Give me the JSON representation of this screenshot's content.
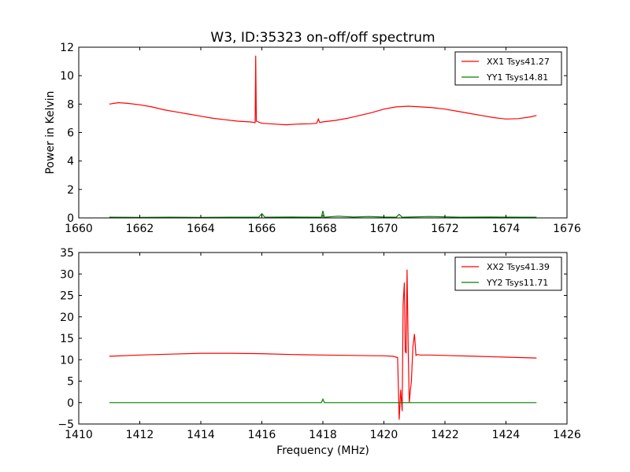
{
  "figure": {
    "title": "W3, ID:35323 on-off/off spectrum"
  },
  "chart_data": [
    {
      "type": "line",
      "title": "W3, ID:35323 on-off/off spectrum",
      "xlabel": "",
      "ylabel": "Power in Kelvin",
      "xlim": [
        1660,
        1676
      ],
      "ylim": [
        0,
        12
      ],
      "xticks": [
        1660,
        1662,
        1664,
        1666,
        1668,
        1670,
        1672,
        1674,
        1676
      ],
      "yticks": [
        0,
        2,
        4,
        6,
        8,
        10,
        12
      ],
      "grid": false,
      "legend": "top-right",
      "series": [
        {
          "name": "XX1 Tsys41.27",
          "color": "#ff0000",
          "x": [
            1661.0,
            1661.3,
            1661.6,
            1662.0,
            1662.4,
            1662.8,
            1663.2,
            1663.6,
            1664.0,
            1664.4,
            1664.8,
            1665.2,
            1665.6,
            1665.78,
            1665.8,
            1665.82,
            1666.0,
            1666.4,
            1666.8,
            1667.2,
            1667.6,
            1667.8,
            1667.85,
            1667.9,
            1668.0,
            1668.4,
            1668.8,
            1669.2,
            1669.6,
            1670.0,
            1670.4,
            1670.8,
            1671.2,
            1671.6,
            1672.0,
            1672.4,
            1672.8,
            1673.2,
            1673.6,
            1674.0,
            1674.4,
            1674.8,
            1675.0
          ],
          "y": [
            8.0,
            8.1,
            8.05,
            7.95,
            7.8,
            7.6,
            7.45,
            7.3,
            7.15,
            7.0,
            6.9,
            6.8,
            6.75,
            6.7,
            11.4,
            6.8,
            6.65,
            6.6,
            6.55,
            6.6,
            6.62,
            6.65,
            6.95,
            6.7,
            6.75,
            6.85,
            7.0,
            7.2,
            7.4,
            7.65,
            7.8,
            7.85,
            7.8,
            7.75,
            7.65,
            7.5,
            7.35,
            7.2,
            7.05,
            6.95,
            6.98,
            7.1,
            7.2
          ]
        },
        {
          "name": "YY1 Tsys14.81",
          "color": "#008000",
          "x": [
            1661.0,
            1662.0,
            1663.0,
            1664.0,
            1665.0,
            1665.9,
            1666.0,
            1666.1,
            1667.0,
            1667.95,
            1668.0,
            1668.05,
            1668.5,
            1669.0,
            1669.5,
            1670.0,
            1670.4,
            1670.5,
            1670.6,
            1671.5,
            1672.5,
            1673.5,
            1674.5,
            1675.0
          ],
          "y": [
            0.05,
            0.04,
            0.05,
            0.04,
            0.05,
            0.05,
            0.3,
            0.05,
            0.06,
            0.05,
            0.5,
            0.05,
            0.12,
            0.06,
            0.1,
            0.06,
            0.05,
            0.25,
            0.05,
            0.1,
            0.05,
            0.06,
            0.05,
            0.05
          ]
        }
      ]
    },
    {
      "type": "line",
      "title": "",
      "xlabel": "Frequency (MHz)",
      "ylabel": "",
      "xlim": [
        1410,
        1426
      ],
      "ylim": [
        -5,
        35
      ],
      "xticks": [
        1410,
        1412,
        1414,
        1416,
        1418,
        1420,
        1422,
        1424,
        1426
      ],
      "yticks": [
        -5,
        0,
        5,
        10,
        15,
        20,
        25,
        30,
        35
      ],
      "grid": false,
      "legend": "top-right",
      "series": [
        {
          "name": "XX2 Tsys41.39",
          "color": "#ff0000",
          "x": [
            1411.0,
            1412.0,
            1413.0,
            1414.0,
            1415.0,
            1416.0,
            1417.0,
            1418.0,
            1419.0,
            1420.0,
            1420.3,
            1420.45,
            1420.5,
            1420.55,
            1420.6,
            1420.63,
            1420.67,
            1420.7,
            1420.73,
            1420.76,
            1420.8,
            1420.83,
            1420.87,
            1420.9,
            1420.95,
            1421.0,
            1421.05,
            1421.1,
            1421.2,
            1421.5,
            1422.0,
            1423.0,
            1424.0,
            1425.0
          ],
          "y": [
            10.8,
            11.1,
            11.3,
            11.5,
            11.5,
            11.4,
            11.2,
            11.1,
            11.0,
            10.9,
            10.8,
            10.5,
            -4.0,
            3.0,
            -2.0,
            23.0,
            28.0,
            12.0,
            11.5,
            31.0,
            11.0,
            0.0,
            3.0,
            5.0,
            13.0,
            16.0,
            11.0,
            11.2,
            11.1,
            11.1,
            11.0,
            10.8,
            10.6,
            10.4
          ]
        },
        {
          "name": "YY2 Tsys11.71",
          "color": "#008000",
          "x": [
            1411.0,
            1413.0,
            1415.0,
            1417.0,
            1417.95,
            1418.0,
            1418.05,
            1419.0,
            1420.0,
            1421.0,
            1422.0,
            1423.0,
            1424.0,
            1425.0
          ],
          "y": [
            0.0,
            0.0,
            0.0,
            0.0,
            0.0,
            0.8,
            0.0,
            0.0,
            0.0,
            0.0,
            0.0,
            0.0,
            0.0,
            0.0
          ]
        }
      ]
    }
  ]
}
